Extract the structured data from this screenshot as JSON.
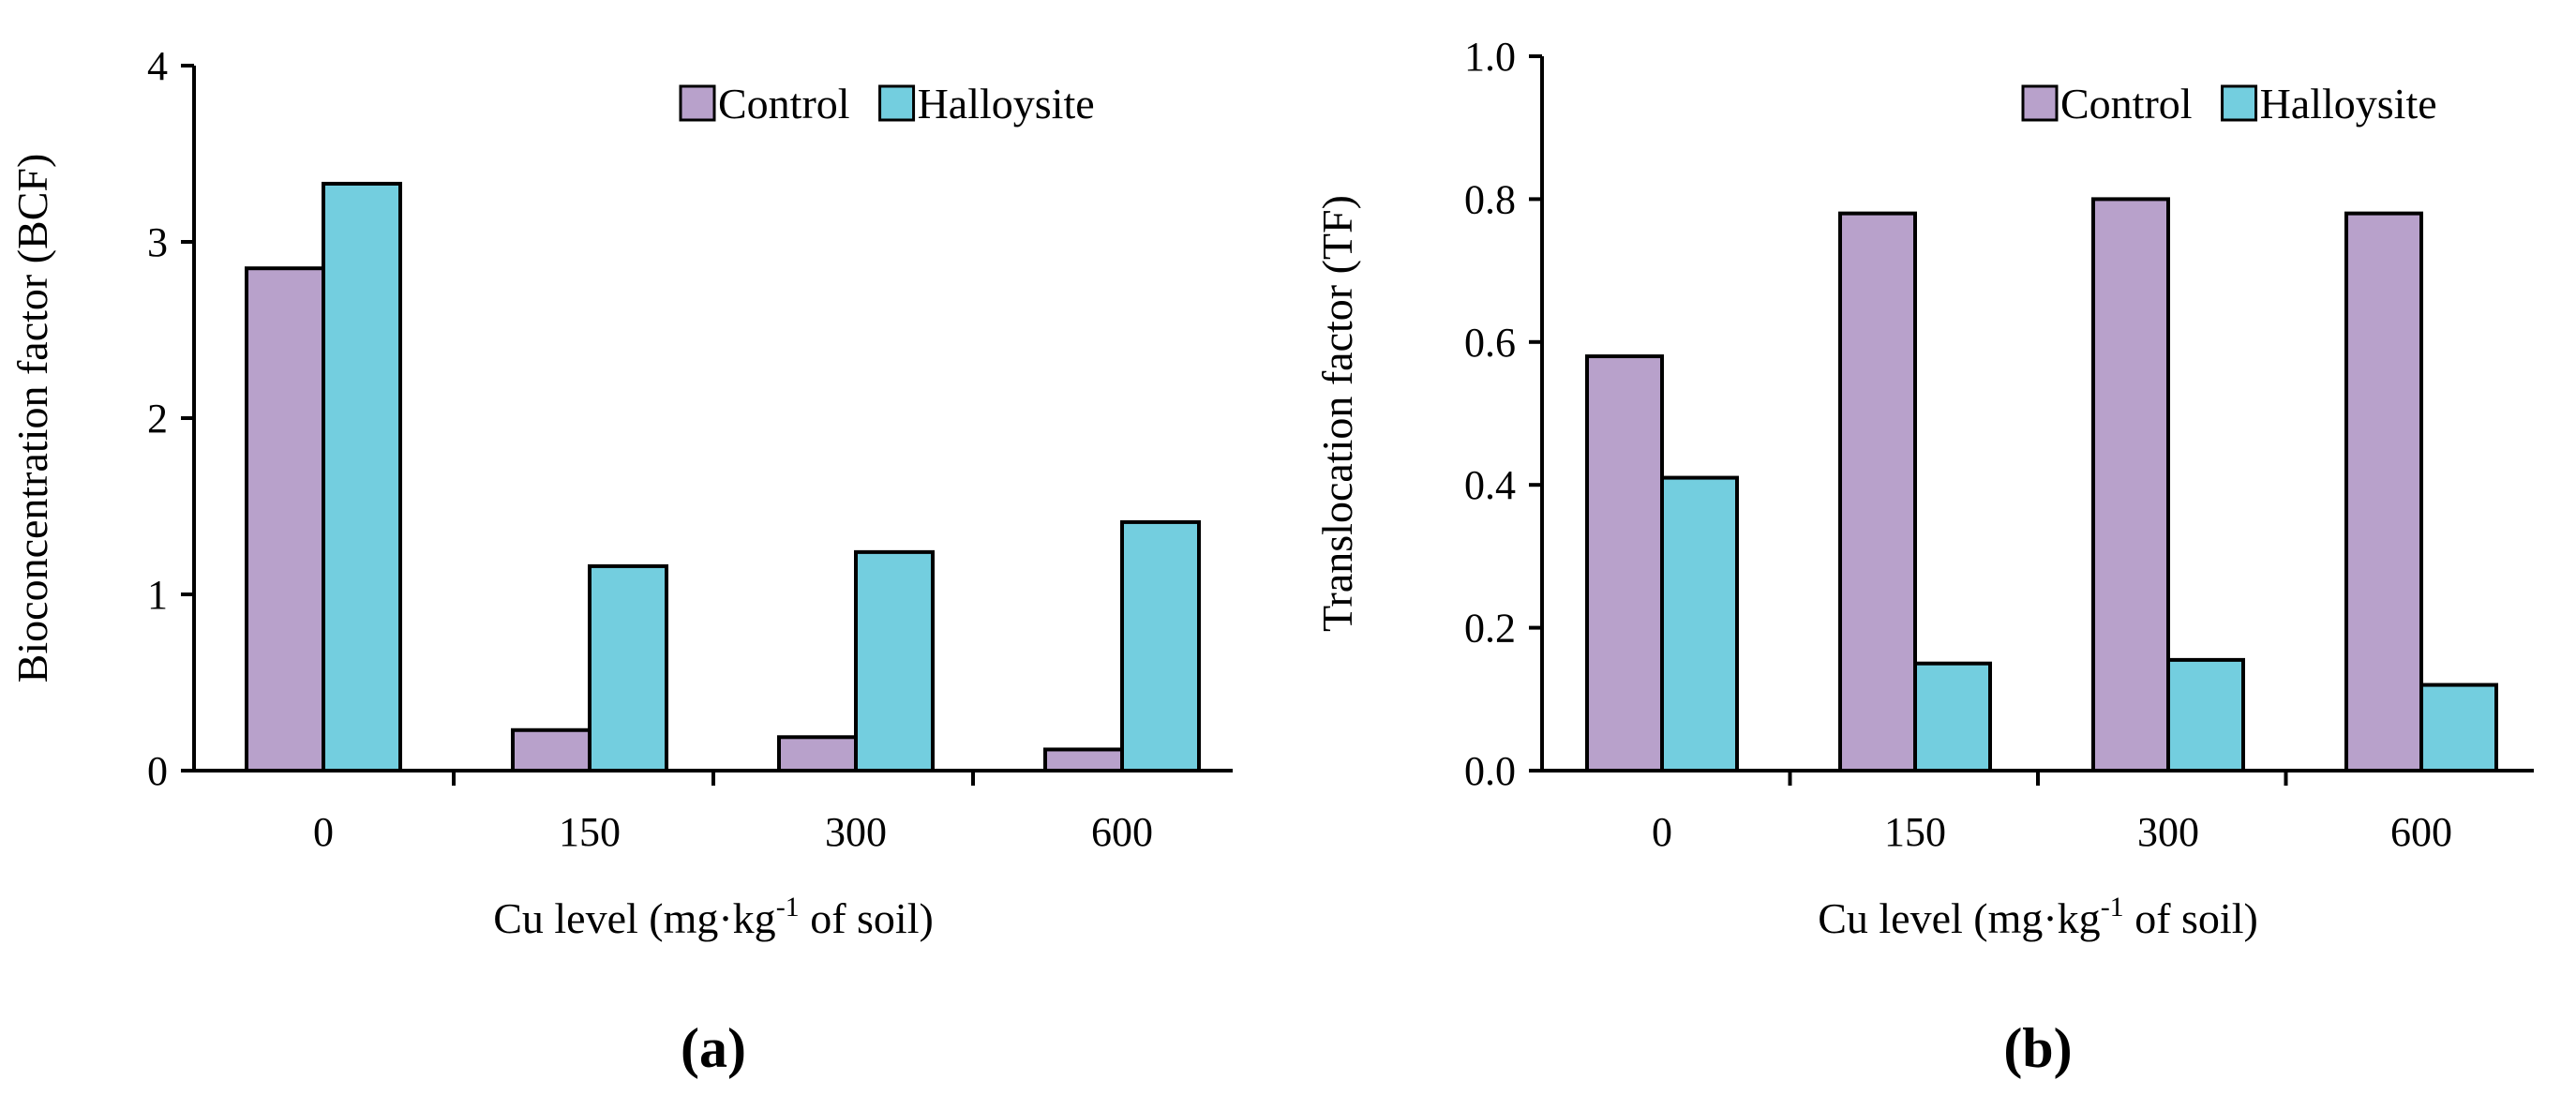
{
  "chart_data": [
    {
      "type": "bar",
      "panel_label": "(a)",
      "categories": [
        "0",
        "150",
        "300",
        "600"
      ],
      "series": [
        {
          "name": "Control",
          "values": [
            2.85,
            0.23,
            0.19,
            0.12
          ]
        },
        {
          "name": "Halloysite",
          "values": [
            3.33,
            1.16,
            1.24,
            1.41
          ]
        }
      ],
      "xlabel": {
        "pre": "Cu level (mg·kg",
        "sup": "-1",
        "post": " of soil)"
      },
      "ylabel": "Bioconcentration factor (BCF)",
      "ylim": [
        0,
        4
      ],
      "yticks": [
        "0",
        "1",
        "2",
        "3",
        "4"
      ],
      "legend_position": "top-right",
      "grid": false
    },
    {
      "type": "bar",
      "panel_label": "(b)",
      "categories": [
        "0",
        "150",
        "300",
        "600"
      ],
      "series": [
        {
          "name": "Control",
          "values": [
            0.58,
            0.78,
            0.8,
            0.78
          ]
        },
        {
          "name": "Halloysite",
          "values": [
            0.41,
            0.15,
            0.155,
            0.12
          ]
        }
      ],
      "xlabel": {
        "pre": "Cu level (mg·kg",
        "sup": "-1",
        "post": " of soil)"
      },
      "ylabel": "Translocation factor (TF)",
      "ylim": [
        0,
        1.0
      ],
      "yticks": [
        "0.0",
        "0.2",
        "0.4",
        "0.6",
        "0.8",
        "1.0"
      ],
      "legend_position": "top-right",
      "grid": false
    }
  ],
  "colors": {
    "control": "#b8a1cb",
    "halloysite": "#73cedf",
    "axis": "#000000"
  }
}
